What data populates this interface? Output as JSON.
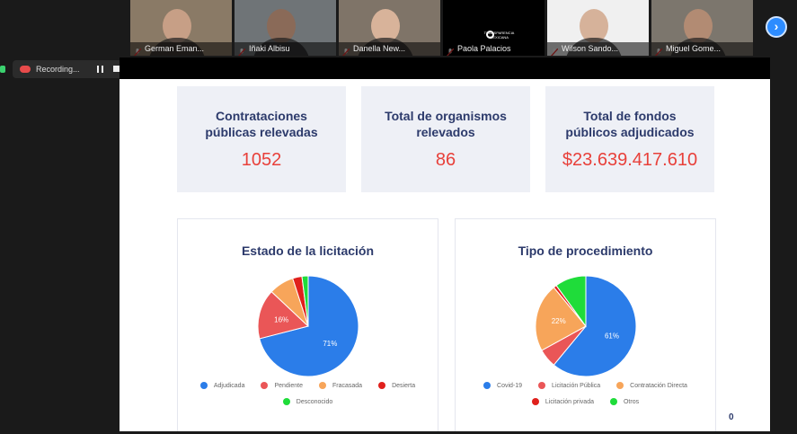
{
  "participants": [
    {
      "name": "German Eman...",
      "bg": "#8a7a66",
      "skin": "#c79f86"
    },
    {
      "name": "Iñaki Albisu",
      "bg": "#6f7477",
      "skin": "#8a6a58"
    },
    {
      "name": "Danella New...",
      "bg": "#7f7468",
      "skin": "#d8b39a"
    },
    {
      "name": "Paola Palacios",
      "bg": "#000000",
      "skin": "#000000",
      "logo_lines": [
        "TRANSPARENCIA",
        "MEXICANA"
      ]
    },
    {
      "name": "Wilson Sando...",
      "bg": "#f0f0f0",
      "skin": "#d6b29a"
    },
    {
      "name": "Miguel Gome...",
      "bg": "#7c766d",
      "skin": "#b28b73"
    }
  ],
  "recording": {
    "label": "Recording..."
  },
  "kpis": [
    {
      "label_lines": [
        "Contrataciones",
        "públicas relevadas"
      ],
      "value": "1052"
    },
    {
      "label_lines": [
        "Total de organismos",
        "relevados"
      ],
      "value": "86"
    },
    {
      "label_lines": [
        "Total de fondos",
        "públicos adjudicados"
      ],
      "value": "$23.639.417.610"
    }
  ],
  "charts": {
    "estado": {
      "title": "Estado de la licitación",
      "legend_rows": [
        [
          "Adjudicada",
          "Pendiente",
          "Fracasada",
          "Desierta"
        ],
        [
          "Desconocido"
        ]
      ]
    },
    "tipo": {
      "title": "Tipo de procedimiento",
      "legend_rows": [
        [
          "Covid-19",
          "Licitación Pública",
          "Contratación Directa"
        ],
        [
          "Licitación privada",
          "Otros"
        ]
      ]
    }
  },
  "chart_data": [
    {
      "type": "pie",
      "title": "Estado de la licitación",
      "categories": [
        "Adjudicada",
        "Pendiente",
        "Fracasada",
        "Desierta",
        "Desconocido"
      ],
      "values": [
        71,
        16,
        8,
        3,
        2
      ],
      "value_labels": [
        "71%",
        "16%",
        "",
        "",
        ""
      ],
      "colors": [
        "#2b7de9",
        "#ea5657",
        "#f7a55a",
        "#e0201c",
        "#1fdc3a"
      ],
      "legend_position": "bottom"
    },
    {
      "type": "pie",
      "title": "Tipo de procedimiento",
      "categories": [
        "Covid-19",
        "Licitación Pública",
        "Contratación Directa",
        "Licitación privada",
        "Otros"
      ],
      "values": [
        61,
        6,
        22,
        1,
        10
      ],
      "value_labels": [
        "61%",
        "",
        "22%",
        "",
        ""
      ],
      "colors": [
        "#2b7de9",
        "#ea5657",
        "#f7a55a",
        "#e0201c",
        "#1fdc3a"
      ],
      "legend_position": "bottom"
    }
  ],
  "page_indicator": "0"
}
